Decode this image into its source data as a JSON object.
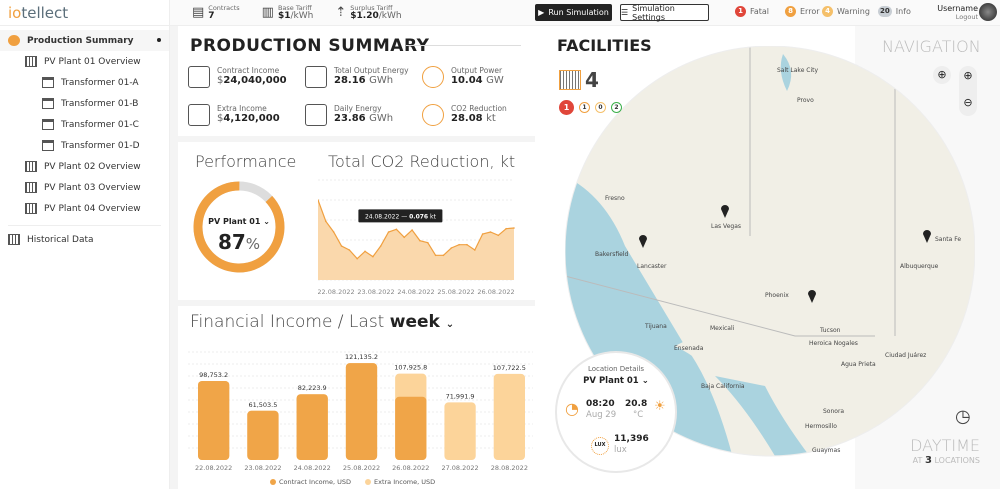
{
  "app": {
    "logo_prefix": "io",
    "logo_rest": "tellect"
  },
  "sidebar": {
    "items": [
      {
        "label": "Production Summary",
        "level": 0,
        "active": true
      },
      {
        "label": "PV Plant 01 Overview",
        "level": 1
      },
      {
        "label": "Transformer 01-A",
        "level": 2
      },
      {
        "label": "Transformer 01-B",
        "level": 2
      },
      {
        "label": "Transformer 01-C",
        "level": 2
      },
      {
        "label": "Transformer 01-D",
        "level": 2
      },
      {
        "label": "PV Plant 02 Overview",
        "level": 1
      },
      {
        "label": "PV Plant 03 Overview",
        "level": 1
      },
      {
        "label": "PV Plant 04 Overview",
        "level": 1
      }
    ],
    "historical": "Historical Data"
  },
  "topbar": {
    "contracts": {
      "label": "Contracts",
      "value": "7"
    },
    "base_tariff": {
      "label": "Base Tariff",
      "value": "$1",
      "unit": "/kWh"
    },
    "surplus_tariff": {
      "label": "Surplus Tariff",
      "value": "$1.20",
      "unit": "/kWh"
    },
    "run_simulation": "Run Simulation",
    "simulation_settings": "Simulation Settings",
    "severity": [
      {
        "count": "1",
        "label": "Fatal",
        "color": "#e0463a"
      },
      {
        "count": "8",
        "label": "Error",
        "color": "#f0a040"
      },
      {
        "count": "4",
        "label": "Warning",
        "color": "#f5c06a"
      },
      {
        "count": "20",
        "label": "Info",
        "color": "#c8ced4"
      }
    ],
    "username": "Username",
    "logout": "Logout"
  },
  "summary": {
    "title": "PRODUCTION SUMMARY",
    "kpis": [
      {
        "label": "Contract Income",
        "prefix": "$",
        "value": "24,040,000",
        "unit": ""
      },
      {
        "label": "Total Output Energy",
        "prefix": "",
        "value": "28.16",
        "unit": "GWh"
      },
      {
        "label": "Output Power",
        "prefix": "",
        "value": "10.04",
        "unit": "GW"
      },
      {
        "label": "Extra Income",
        "prefix": "$",
        "value": "4,120,000",
        "unit": ""
      },
      {
        "label": "Daily Energy",
        "prefix": "",
        "value": "23.86",
        "unit": "GWh"
      },
      {
        "label": "CO2 Reduction",
        "prefix": "",
        "value": "28.08",
        "unit": "kt"
      }
    ]
  },
  "performance": {
    "title": "Performance",
    "plant": "PV Plant 01",
    "value": "87",
    "unit": "%",
    "fraction": 0.87
  },
  "accent": "#f0a040",
  "accent_light": "#fcd49a",
  "chart_data": [
    {
      "type": "area",
      "title": "Total CO2 Reduction, kt",
      "x_ticks": [
        "22.08.2022",
        "23.08.2022",
        "24.08.2022",
        "25.08.2022",
        "26.08.2022"
      ],
      "values": [
        0.12,
        0.088,
        0.072,
        0.051,
        0.045,
        0.032,
        0.043,
        0.035,
        0.051,
        0.072,
        0.076,
        0.064,
        0.075,
        0.059,
        0.056,
        0.037,
        0.037,
        0.048,
        0.053,
        0.053,
        0.045,
        0.069,
        0.072,
        0.067,
        0.077,
        0.078
      ],
      "ylim": [
        0,
        0.15
      ],
      "grid": true,
      "tooltip": {
        "date": "24.08.2022",
        "value": "0.076",
        "unit": "kt",
        "index": 10
      }
    },
    {
      "type": "bar",
      "title_prefix": "Financial Income / Last",
      "period": "week",
      "categories": [
        "22.08.2022",
        "23.08.2022",
        "24.08.2022",
        "25.08.2022",
        "26.08.2022",
        "27.08.2022",
        "28.08.2022"
      ],
      "series": [
        {
          "name": "Contract Income, USD",
          "values": [
            98753.2,
            61503.5,
            82223.9,
            121135.2,
            79000,
            0,
            0
          ]
        },
        {
          "name": "Extra Income, USD",
          "values": [
            0,
            0,
            0,
            0,
            28925.8,
            71991.9,
            107722.5
          ]
        }
      ],
      "labels": [
        "98,753.2",
        "61,503.5",
        "82,223.9",
        "121,135.2",
        "107,925.8",
        "71,991.9",
        "107,722.5"
      ],
      "ylim": [
        0,
        135000
      ],
      "legend": "bottom"
    }
  ],
  "facilities": {
    "title": "FACILITIES",
    "count": "4",
    "status": [
      {
        "v": "1",
        "c": "#e0463a",
        "fill": true
      },
      {
        "v": "1",
        "c": "#f0a040"
      },
      {
        "v": "0",
        "c": "#f5c06a"
      },
      {
        "v": "2",
        "c": "#3cb04a"
      }
    ]
  },
  "map": {
    "cities": [
      "Salt Lake City",
      "Provo",
      "Fresno",
      "Las Vegas",
      "Bakersfield",
      "Lancaster",
      "Phoenix",
      "Tucson",
      "Albuquerque",
      "Santa Fe",
      "Tijuana",
      "Mexicali",
      "Ensenada",
      "Heroica Nogales",
      "Agua Prieta",
      "Ciudad Juárez",
      "Hermosillo",
      "Guaymas",
      "Baja California",
      "Sonora"
    ]
  },
  "location": {
    "title": "Location Details",
    "plant": "PV Plant 01",
    "time": "08:20",
    "date": "Aug 29",
    "temp": "20.8",
    "temp_unit": "°C",
    "lux": "11,396",
    "lux_unit": "lux",
    "lux_badge": "LUX"
  },
  "navigation": {
    "title": "NAVIGATION",
    "daytime": "DAYTIME",
    "at": "AT",
    "locations_count": "3",
    "locations": "LOCATIONS"
  }
}
